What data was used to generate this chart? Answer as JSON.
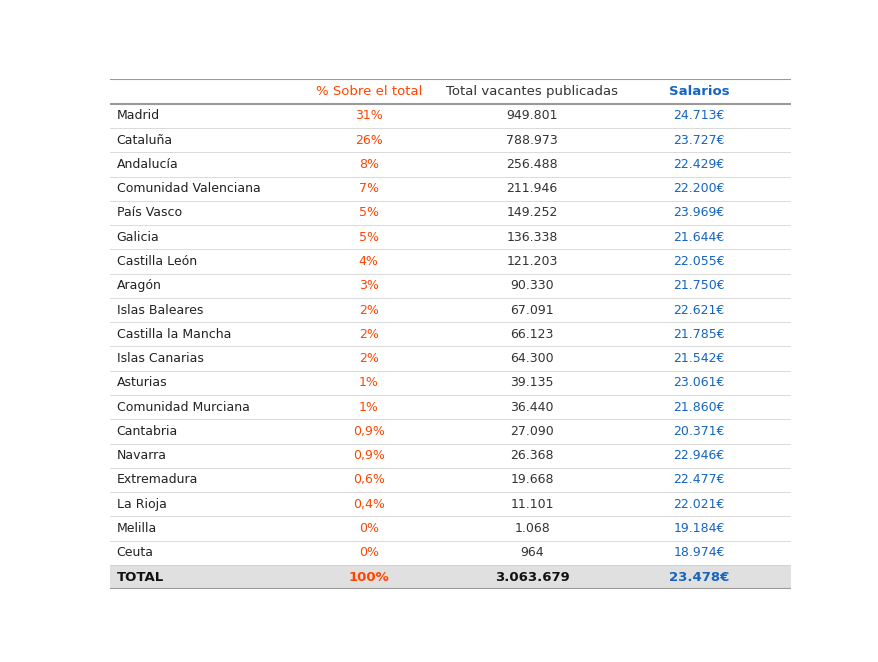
{
  "headers": [
    "",
    "% Sobre el total",
    "Total vacantes publicadas",
    "Salarios"
  ],
  "header_colors": [
    "#000000",
    "#ff4500",
    "#333333",
    "#1565c0"
  ],
  "rows": [
    [
      "Madrid",
      "31%",
      "949.801",
      "24.713€"
    ],
    [
      "Cataluña",
      "26%",
      "788.973",
      "23.727€"
    ],
    [
      "Andalucía",
      "8%",
      "256.488",
      "22.429€"
    ],
    [
      "Comunidad Valenciana",
      "7%",
      "211.946",
      "22.200€"
    ],
    [
      "País Vasco",
      "5%",
      "149.252",
      "23.969€"
    ],
    [
      "Galicia",
      "5%",
      "136.338",
      "21.644€"
    ],
    [
      "Castilla León",
      "4%",
      "121.203",
      "22.055€"
    ],
    [
      "Aragón",
      "3%",
      "90.330",
      "21.750€"
    ],
    [
      "Islas Baleares",
      "2%",
      "67.091",
      "22.621€"
    ],
    [
      "Castilla la Mancha",
      "2%",
      "66.123",
      "21.785€"
    ],
    [
      "Islas Canarias",
      "2%",
      "64.300",
      "21.542€"
    ],
    [
      "Asturias",
      "1%",
      "39.135",
      "23.061€"
    ],
    [
      "Comunidad Murciana",
      "1%",
      "36.440",
      "21.860€"
    ],
    [
      "Cantabria",
      "0,9%",
      "27.090",
      "20.371€"
    ],
    [
      "Navarra",
      "0,9%",
      "26.368",
      "22.946€"
    ],
    [
      "Extremadura",
      "0,6%",
      "19.668",
      "22.477€"
    ],
    [
      "La Rioja",
      "0,4%",
      "11.101",
      "22.021€"
    ],
    [
      "Melilla",
      "0%",
      "1.068",
      "19.184€"
    ],
    [
      "Ceuta",
      "0%",
      "964",
      "18.974€"
    ]
  ],
  "total_row": [
    "TOTAL",
    "100%",
    "3.063.679",
    "23.478€"
  ],
  "col1_color": "#ff4500",
  "col3_color": "#1565c0",
  "total_col1_color": "#ff4500",
  "total_col3_color": "#1565c0",
  "bg_color": "#ffffff",
  "total_bg": "#e0e0e0",
  "grid_color": "#cccccc",
  "strong_line_color": "#999999"
}
